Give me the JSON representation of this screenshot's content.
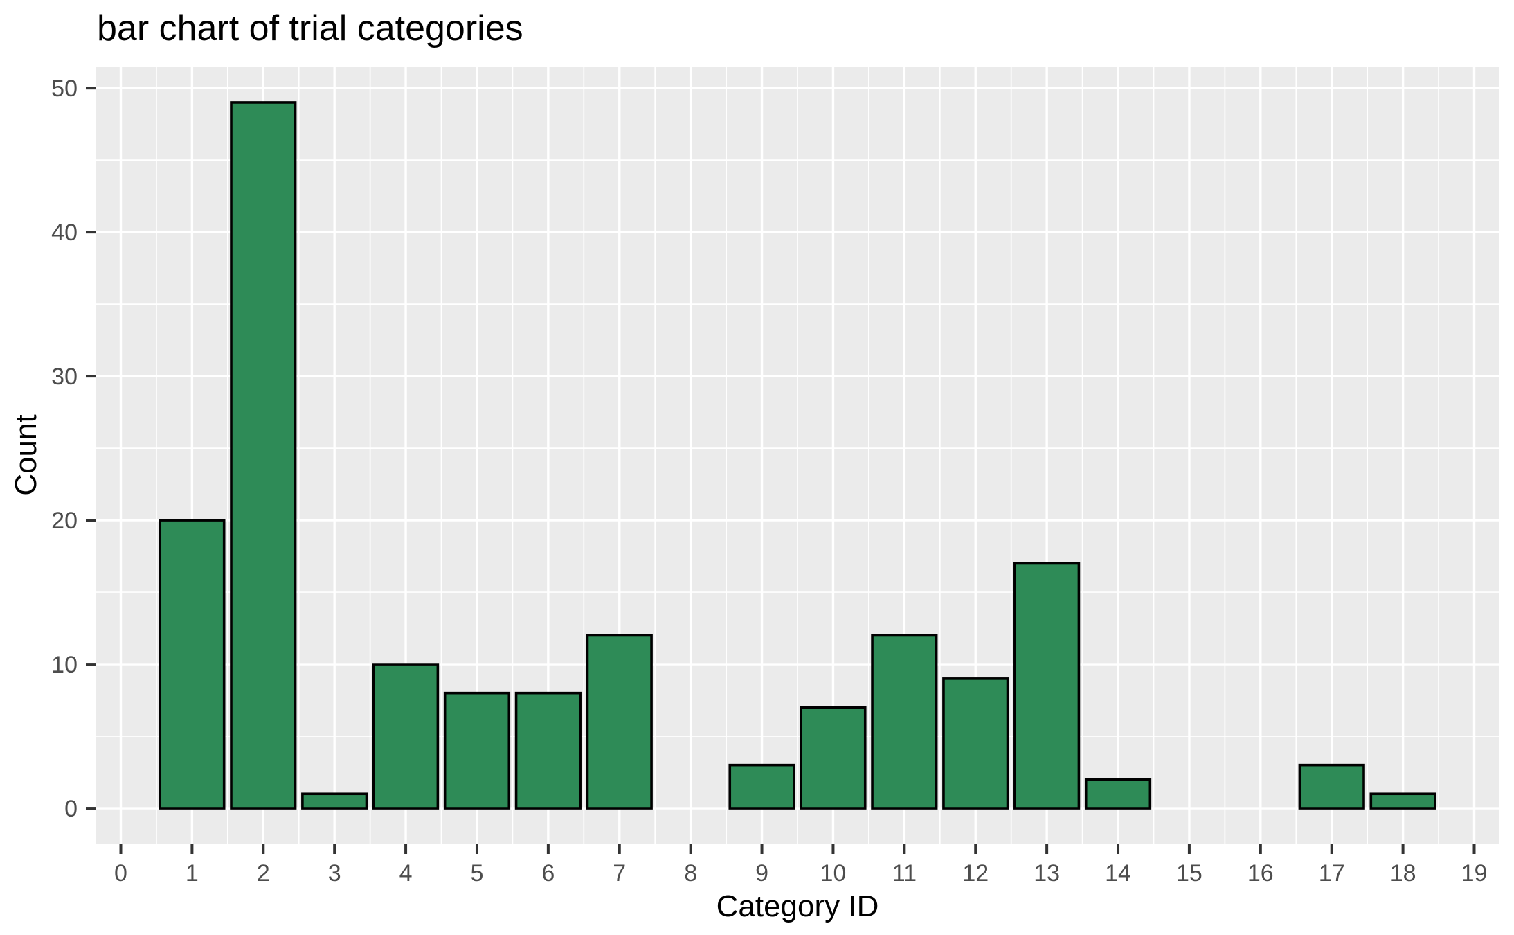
{
  "chart_data": {
    "type": "bar",
    "title": "bar chart of trial categories",
    "xlabel": "Category ID",
    "ylabel": "Count",
    "categories": [
      0,
      1,
      2,
      3,
      4,
      5,
      6,
      7,
      8,
      9,
      10,
      11,
      12,
      13,
      14,
      15,
      16,
      17,
      18,
      19
    ],
    "values": [
      0,
      20,
      49,
      1,
      10,
      8,
      8,
      12,
      0,
      3,
      7,
      12,
      9,
      17,
      2,
      0,
      0,
      3,
      1,
      0
    ],
    "x_tick_labels": [
      "0",
      "1",
      "2",
      "3",
      "4",
      "5",
      "6",
      "7",
      "8",
      "9",
      "10",
      "11",
      "12",
      "13",
      "14",
      "15",
      "16",
      "17",
      "18",
      "19"
    ],
    "y_ticks": [
      0,
      10,
      20,
      30,
      40,
      50
    ],
    "y_minor_ticks": [
      5,
      15,
      25,
      35,
      45
    ],
    "x_minor_positions": [
      0.5,
      1.5,
      2.5,
      3.5,
      4.5,
      5.5,
      6.5,
      7.5,
      8.5,
      9.5,
      10.5,
      11.5,
      12.5,
      13.5,
      14.5,
      15.5,
      16.5,
      17.5,
      18.5
    ],
    "xlim": [
      -0.345,
      19.345
    ],
    "ylim": [
      -2.45,
      51.45
    ],
    "bar_width": 0.9,
    "grid": true,
    "legend": false,
    "style": {
      "bar_fill": "#2e8b57",
      "bar_stroke": "#000000",
      "panel_bg": "#ebebeb",
      "grid_color": "#ffffff",
      "tick_mark_color": "#333333",
      "tick_label_color": "#4d4d4d",
      "title_color": "#000000",
      "axis_title_color": "#000000",
      "page_bg": "#ffffff"
    }
  }
}
